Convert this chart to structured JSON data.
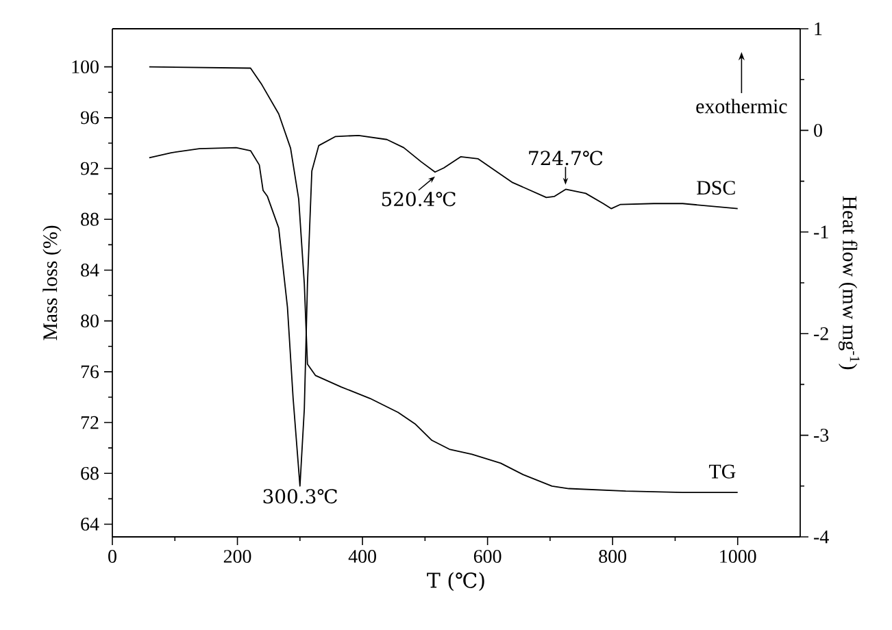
{
  "chart_data": {
    "type": "line",
    "xlabel": "T (℃)",
    "ylabel": "Mass loss (%)",
    "y2label": "Heat flow (mw mg$^{-1}$)",
    "xlim": [
      0,
      1100
    ],
    "xticks": [
      0,
      200,
      400,
      600,
      800,
      1000
    ],
    "ylim": [
      63,
      103
    ],
    "yticks": [
      64,
      68,
      72,
      76,
      80,
      84,
      88,
      92,
      96,
      100
    ],
    "y2lim": [
      -4,
      1
    ],
    "y2ticks": [
      -4,
      -3,
      -2,
      -1,
      0,
      1
    ],
    "grid": false,
    "legend": false,
    "marker": "none",
    "line_style": "solid",
    "series": [
      {
        "name": "TG",
        "color": "#000000",
        "x": [
          59,
          221,
          239,
          266,
          285,
          298,
          307,
          312,
          325,
          366,
          412,
          457,
          484,
          511,
          539,
          575,
          621,
          657,
          703,
          730,
          821,
          912,
          1000
        ],
        "values": [
          100,
          99.9,
          98.6,
          96.3,
          93.6,
          89.6,
          82.9,
          76.6,
          75.7,
          74.8,
          73.9,
          72.8,
          71.9,
          70.6,
          69.9,
          69.5,
          68.8,
          67.9,
          67.0,
          66.8,
          66.6,
          66.5,
          66.5
        ]
      },
      {
        "name": "DSC",
        "color": "#000000",
        "axis": "y2",
        "x": [
          59,
          94,
          139,
          198,
          221,
          235,
          241,
          248,
          266,
          280,
          289,
          300,
          307,
          312,
          319,
          330,
          357,
          394,
          439,
          466,
          494,
          516,
          530,
          557,
          585,
          639,
          694,
          707,
          725,
          757,
          785,
          798,
          812,
          866,
          912,
          1000
        ],
        "values": [
          -0.27,
          -0.22,
          -0.18,
          -0.17,
          -0.2,
          -0.34,
          -0.59,
          -0.65,
          -0.96,
          -1.74,
          -2.63,
          -3.5,
          -2.74,
          -1.51,
          -0.4,
          -0.15,
          -0.06,
          -0.05,
          -0.09,
          -0.17,
          -0.31,
          -0.41,
          -0.37,
          -0.26,
          -0.28,
          -0.51,
          -0.66,
          -0.65,
          -0.58,
          -0.62,
          -0.72,
          -0.77,
          -0.73,
          -0.72,
          -0.72,
          -0.77
        ]
      }
    ],
    "annotations": [
      {
        "text": "300.3℃",
        "x": 300.3,
        "y": 67.0
      },
      {
        "text": "520.4℃",
        "x": 520.4,
        "y": 91.8
      },
      {
        "text": "724.7℃",
        "x": 724.7,
        "y": 90.4
      },
      "exothermic"
    ]
  }
}
